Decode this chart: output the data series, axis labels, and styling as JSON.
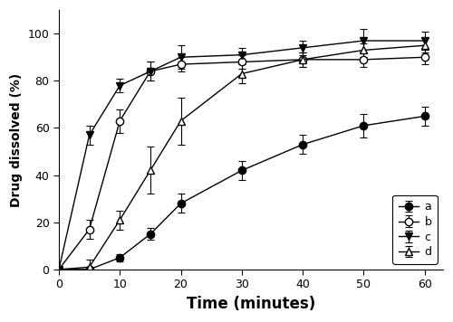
{
  "time": [
    0,
    5,
    10,
    15,
    20,
    30,
    40,
    50,
    60
  ],
  "series_a": {
    "label": "a",
    "y": [
      0,
      0,
      5,
      15,
      28,
      42,
      53,
      61,
      65
    ],
    "yerr": [
      0,
      0,
      1.5,
      2.5,
      4,
      4,
      4,
      5,
      4
    ]
  },
  "series_b": {
    "label": "b",
    "y": [
      0,
      17,
      63,
      84,
      87,
      88,
      89,
      89,
      90
    ],
    "yerr": [
      0,
      4,
      5,
      4,
      3,
      3,
      3,
      3,
      3
    ]
  },
  "series_c": {
    "label": "c",
    "y": [
      0,
      57,
      78,
      84,
      90,
      91,
      94,
      97,
      97
    ],
    "yerr": [
      0,
      4,
      3,
      4,
      5,
      3,
      3,
      5,
      4
    ]
  },
  "series_d": {
    "label": "d",
    "y": [
      0,
      1,
      21,
      42,
      63,
      83,
      89,
      93,
      95
    ],
    "yerr": [
      0,
      3,
      4,
      10,
      10,
      4,
      3,
      3,
      3
    ]
  },
  "xlabel": "Time (minutes)",
  "ylabel": "Drug dissolved (%)",
  "xlim": [
    0,
    63
  ],
  "ylim": [
    0,
    110
  ],
  "xticks": [
    0,
    10,
    20,
    30,
    40,
    50,
    60
  ],
  "yticks": [
    0,
    20,
    40,
    60,
    80,
    100
  ],
  "line_color": "#000000",
  "background_color": "#ffffff"
}
